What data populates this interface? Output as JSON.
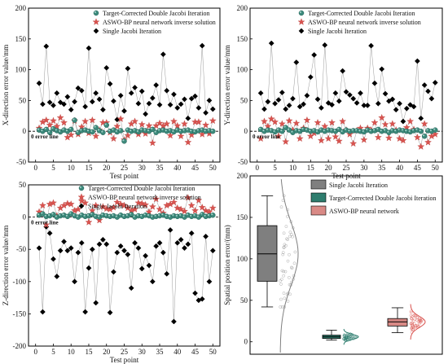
{
  "colors": {
    "target": "#3d8a7c",
    "asswo": "#d9534f",
    "single": "#000000",
    "box_single": "#7f7f7f",
    "box_target": "#2e7d6e",
    "box_asswo": "#d98a86"
  },
  "legend": {
    "target": "Target-Corrected Double Jacobi Iteration",
    "asswo": "ASWO-BP neural network inverse solution",
    "single": "Single Jacobi Iteration",
    "asswo_short": "ASWO-BP neural network"
  },
  "zero_label": "0 error line",
  "chart_data": [
    {
      "type": "scatter",
      "title": "",
      "xlabel": "Test point",
      "ylabel": "X-direction error value/mm",
      "xlim": [
        -2,
        52
      ],
      "ylim": [
        -50,
        200
      ],
      "xticks": [
        0,
        5,
        10,
        15,
        20,
        25,
        30,
        35,
        40,
        45,
        50
      ],
      "yticks": [
        -50,
        0,
        50,
        100,
        150,
        200
      ],
      "series": [
        {
          "name": "Single Jacobi Iteration",
          "key": "single",
          "values": [
            78,
            44,
            138,
            47,
            42,
            62,
            47,
            44,
            56,
            35,
            48,
            70,
            66,
            40,
            135,
            48,
            62,
            52,
            35,
            103,
            77,
            49,
            19,
            58,
            33,
            102,
            62,
            71,
            45,
            65,
            28,
            45,
            54,
            75,
            43,
            125,
            66,
            43,
            60,
            38,
            44,
            52,
            21,
            53,
            57,
            38,
            139,
            30,
            50,
            36
          ]
        },
        {
          "name": "ASWO-BP neural network inverse solution",
          "key": "asswo",
          "values": [
            5,
            15,
            18,
            10,
            17,
            8,
            22,
            14,
            -10,
            -6,
            17,
            -5,
            7,
            16,
            -3,
            18,
            -8,
            2,
            14,
            14,
            -2,
            -12,
            8,
            20,
            -14,
            -7,
            12,
            16,
            -5,
            11,
            -4,
            9,
            -19,
            9,
            13,
            9,
            12,
            -7,
            16,
            9,
            -8,
            12,
            -18,
            -6,
            15,
            15,
            -5,
            10,
            -4,
            17
          ]
        },
        {
          "name": "Target-Corrected Double Jacobi Iteration",
          "key": "target",
          "values": [
            2,
            0,
            3,
            -2,
            4,
            1,
            -1,
            2,
            0,
            3,
            18,
            -2,
            1,
            2,
            0,
            -1,
            6,
            1,
            -2,
            10,
            0,
            2,
            -1,
            1,
            -16,
            2,
            0,
            1,
            -1,
            2,
            1,
            0,
            3,
            -2,
            1,
            2,
            0,
            1,
            -1,
            2,
            0,
            1,
            2,
            0,
            -1,
            1,
            2,
            0,
            1,
            0
          ]
        }
      ]
    },
    {
      "type": "scatter",
      "title": "",
      "xlabel": "Test point",
      "ylabel": "Y-direction error value/mm",
      "xlim": [
        -2,
        52
      ],
      "ylim": [
        -50,
        200
      ],
      "xticks": [
        0,
        5,
        10,
        15,
        20,
        25,
        30,
        35,
        40,
        45,
        50
      ],
      "yticks": [
        -50,
        0,
        50,
        100,
        150,
        200
      ],
      "series": [
        {
          "name": "Single Jacobi Iteration",
          "key": "single",
          "values": [
            62,
            36,
            48,
            143,
            45,
            51,
            63,
            36,
            42,
            53,
            112,
            40,
            44,
            58,
            88,
            124,
            52,
            38,
            140,
            46,
            43,
            62,
            49,
            98,
            64,
            59,
            53,
            46,
            62,
            42,
            42,
            139,
            78,
            45,
            101,
            61,
            49,
            52,
            35,
            45,
            16,
            37,
            43,
            40,
            114,
            21,
            75,
            65,
            53,
            79
          ]
        },
        {
          "name": "ASWO-BP neural network inverse solution",
          "key": "asswo",
          "values": [
            -12,
            16,
            8,
            20,
            15,
            -8,
            12,
            -17,
            17,
            2,
            13,
            -12,
            5,
            18,
            -8,
            -3,
            14,
            -15,
            8,
            -12,
            14,
            -9,
            -16,
            16,
            2,
            -5,
            -20,
            1,
            5,
            -14,
            5,
            2,
            14,
            -10,
            22,
            11,
            -11,
            12,
            2,
            -12,
            -15,
            6,
            16,
            3,
            -10,
            -25,
            12,
            -18,
            -8,
            -5
          ]
        },
        {
          "name": "Target-Corrected Double Jacobi Iteration",
          "key": "target",
          "values": [
            3,
            0,
            2,
            1,
            -1,
            2,
            0,
            6,
            2,
            -2,
            1,
            0,
            3,
            2,
            0,
            1,
            -1,
            2,
            0,
            2,
            1,
            0,
            3,
            -1,
            2,
            0,
            1,
            1,
            0,
            -1,
            2,
            0,
            1,
            3,
            0,
            1,
            -2,
            1,
            0,
            2,
            1,
            0,
            -1,
            1,
            2,
            0,
            -8,
            1,
            0,
            2
          ]
        }
      ]
    },
    {
      "type": "scatter",
      "title": "",
      "xlabel": "Test point",
      "ylabel": "Z-direction error value/mm",
      "xlim": [
        -2,
        52
      ],
      "ylim": [
        -200,
        50
      ],
      "xticks": [
        0,
        5,
        10,
        15,
        20,
        25,
        30,
        35,
        40,
        45,
        50
      ],
      "yticks": [
        -200,
        -150,
        -100,
        -50,
        0,
        50
      ],
      "series": [
        {
          "name": "Single Jacobi Iteration",
          "key": "single",
          "values": [
            -48,
            -147,
            -15,
            -25,
            -65,
            -92,
            -52,
            -38,
            -52,
            -48,
            -100,
            -55,
            -40,
            -147,
            -79,
            -50,
            -133,
            -42,
            -35,
            -42,
            -148,
            -85,
            -55,
            -45,
            -52,
            -58,
            -110,
            -40,
            -48,
            -80,
            -60,
            -75,
            -100,
            -45,
            -40,
            -55,
            -88,
            -20,
            -162,
            -40,
            -35,
            -48,
            -42,
            -25,
            -118,
            -129,
            -127,
            -30,
            -100,
            -52
          ]
        },
        {
          "name": "ASWO-BP neural network inverse solution",
          "key": "asswo",
          "values": [
            8,
            18,
            -12,
            20,
            22,
            2,
            14,
            18,
            21,
            20,
            10,
            12,
            25,
            22,
            -8,
            10,
            18,
            -5,
            16,
            13,
            12,
            15,
            23,
            20,
            18,
            14,
            10,
            12,
            22,
            21,
            19,
            8,
            16,
            28,
            12,
            6,
            18,
            20,
            23,
            14,
            12,
            9,
            30,
            18,
            10,
            26,
            15,
            10,
            8,
            14
          ]
        },
        {
          "name": "Target-Corrected Double Jacobi Iteration",
          "key": "target",
          "values": [
            3,
            5,
            1,
            2,
            4,
            0,
            2,
            3,
            1,
            5,
            2,
            0,
            3,
            1,
            2,
            4,
            1,
            0,
            3,
            2,
            1,
            2,
            0,
            3,
            1,
            2,
            4,
            0,
            2,
            1,
            3,
            2,
            0,
            1,
            2,
            3,
            1,
            0,
            2,
            1,
            2,
            0,
            3,
            1,
            2,
            0,
            4,
            1,
            2,
            3
          ]
        }
      ]
    },
    {
      "type": "box",
      "title": "",
      "xlabel": "",
      "ylabel": "Spatial position error/(mm)",
      "ylim": [
        -15,
        200
      ],
      "yticks": [
        0,
        50,
        100,
        150,
        200
      ],
      "series": [
        {
          "name": "Single Jacobi Iteration",
          "key": "single",
          "min": 42,
          "q1": 73,
          "median": 106,
          "q3": 140,
          "max": 176
        },
        {
          "name": "Target-Corrected Double Jacobi Iteration",
          "key": "target",
          "min": 2,
          "q1": 4,
          "median": 6,
          "q3": 8,
          "max": 14
        },
        {
          "name": "ASWO-BP neural network",
          "key": "asswo",
          "min": 11,
          "q1": 19,
          "median": 24,
          "q3": 28,
          "max": 41
        }
      ]
    }
  ]
}
